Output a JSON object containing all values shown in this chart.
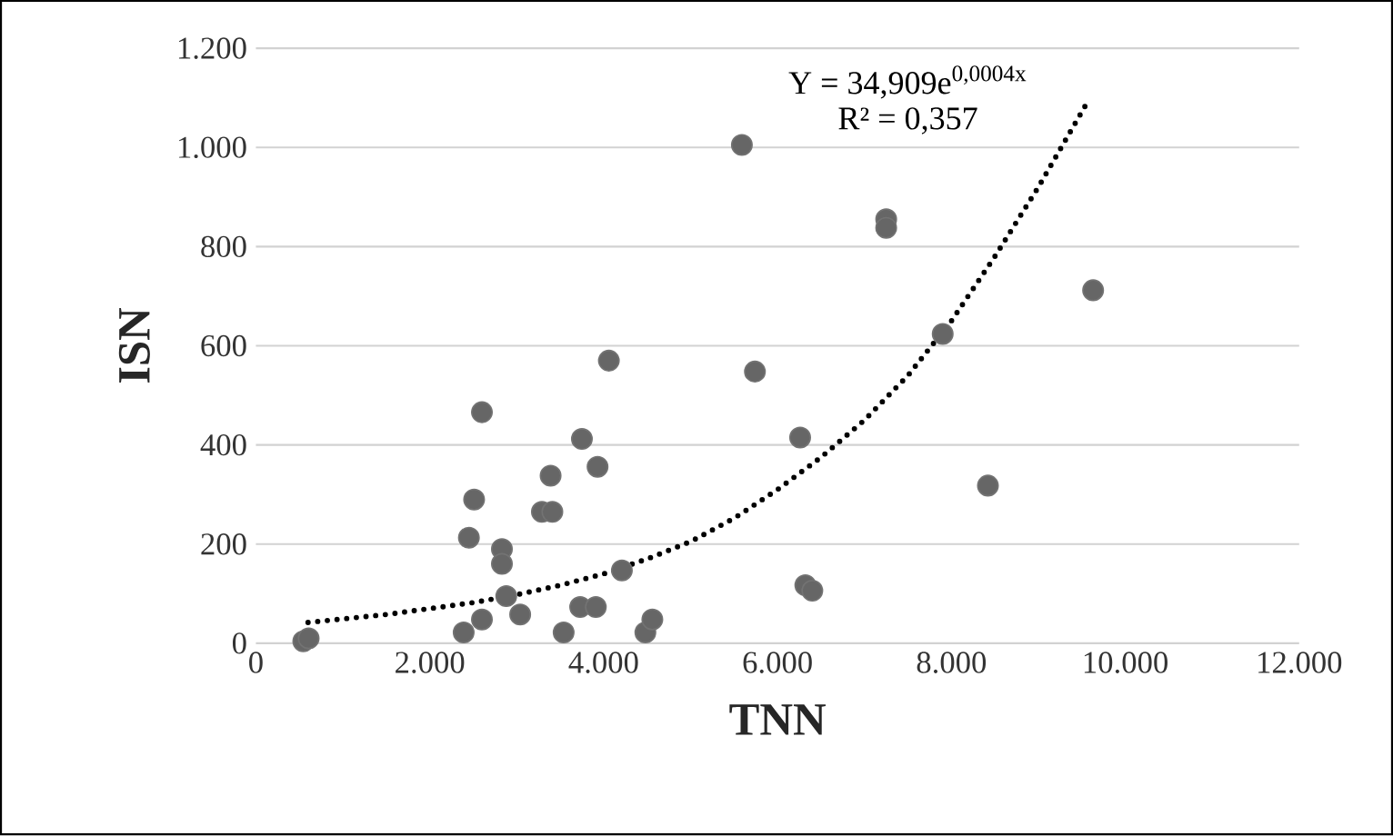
{
  "chart_data": {
    "type": "scatter",
    "xlabel": "TNN",
    "ylabel": "ISN",
    "xlim": [
      0,
      12000
    ],
    "ylim": [
      0,
      1200
    ],
    "xticks": [
      0,
      {
        "value": 2000,
        "label": "2.000"
      },
      {
        "value": 4000,
        "label": "4.000"
      },
      {
        "value": 6000,
        "label": "6.000"
      },
      {
        "value": 8000,
        "label": "8.000"
      },
      {
        "value": 10000,
        "label": "10.000"
      },
      {
        "value": 12000,
        "label": "12.000"
      }
    ],
    "yticks": [
      0,
      200,
      400,
      600,
      800,
      {
        "value": 1000,
        "label": "1.000"
      },
      {
        "value": 1200,
        "label": "1.200"
      }
    ],
    "grid": "y",
    "marker": "circle",
    "series": [
      {
        "color": "#666666",
        "x": [
          545,
          607,
          2390,
          2450,
          2510,
          2600,
          2600,
          2830,
          2830,
          2880,
          3040,
          3290,
          3410,
          3390,
          3540,
          3750,
          3730,
          3910,
          3930,
          4060,
          4210,
          4480,
          4560,
          5590,
          5740,
          6260,
          6320,
          6400,
          7250,
          7250,
          7900,
          8420,
          9630
        ],
        "values": [
          4,
          10,
          22,
          213,
          290,
          466,
          48,
          190,
          160,
          95,
          58,
          265,
          265,
          338,
          22,
          412,
          73,
          73,
          356,
          570,
          147,
          22,
          48,
          1005,
          548,
          415,
          117,
          106,
          855,
          838,
          624,
          318,
          712
        ]
      },
      {
        "type": "line",
        "color": "#000000",
        "line_style": "dotted",
        "marker": "none",
        "x": [
          600,
          1500,
          2000,
          2500,
          3000,
          3500,
          4000,
          4500,
          5000,
          5500,
          6000,
          6500,
          7000,
          7500,
          8000,
          8500,
          9000,
          9560
        ],
        "values": [
          42,
          58,
          70,
          82,
          98,
          117,
          140,
          170,
          205,
          252,
          310,
          375,
          450,
          540,
          650,
          780,
          920,
          1090
        ]
      }
    ],
    "annotations": [
      "Y = 34,909e$^{0,0004x}$",
      "R² = 0,357"
    ]
  }
}
